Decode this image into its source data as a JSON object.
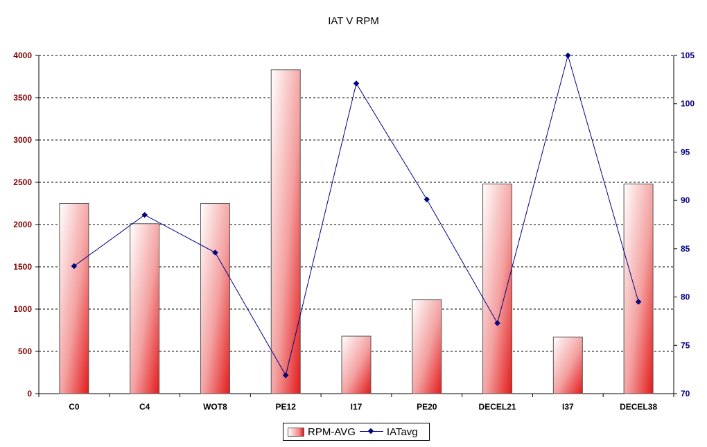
{
  "chart_data": {
    "type": "bar",
    "title": "IAT V RPM",
    "categories": [
      "C0",
      "C4",
      "WOT8",
      "PE12",
      "I17",
      "PE20",
      "DECEL21",
      "I37",
      "DECEL38"
    ],
    "series": [
      {
        "name": "RPM-AVG",
        "type": "bar",
        "axis": "left",
        "color": "#e31a1a",
        "values": [
          2250,
          2010,
          2250,
          3830,
          680,
          1110,
          2480,
          670,
          2480
        ]
      },
      {
        "name": "IATavg",
        "type": "line",
        "axis": "right",
        "color": "#000080",
        "values": [
          83.2,
          88.5,
          84.6,
          71.9,
          102.1,
          90.1,
          77.3,
          105.0,
          79.5
        ]
      }
    ],
    "y_left": {
      "ylim": [
        0,
        4000
      ],
      "ticks": [
        0,
        500,
        1000,
        1500,
        2000,
        2500,
        3000,
        3500,
        4000
      ],
      "tick_color": "#800000"
    },
    "y_right": {
      "ylim": [
        70,
        105
      ],
      "ticks": [
        70,
        75,
        80,
        85,
        90,
        95,
        100,
        105
      ],
      "tick_color": "#000080"
    },
    "xlabel": "",
    "ylabel": "",
    "grid": true,
    "legend": {
      "position": "bottom",
      "bar_label": "RPM-AVG",
      "line_label": "IATavg"
    }
  }
}
